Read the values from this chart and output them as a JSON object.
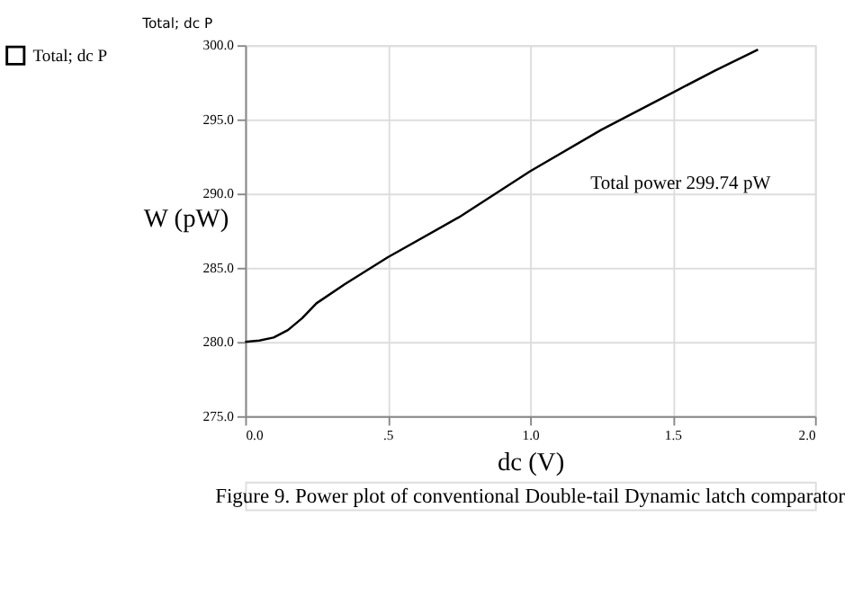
{
  "chart_data": {
    "type": "line",
    "title": "Total; dc P",
    "xlabel": "dc (V)",
    "ylabel": "W (pW)",
    "x": [
      0.0,
      0.05,
      0.1,
      0.15,
      0.2,
      0.25,
      0.35,
      0.5,
      0.75,
      1.0,
      1.25,
      1.5,
      1.65,
      1.8
    ],
    "series": [
      {
        "name": "Total; dc P",
        "color": "#000000",
        "values": [
          280.0,
          280.1,
          280.3,
          280.8,
          281.6,
          282.6,
          283.9,
          285.7,
          288.4,
          291.5,
          294.3,
          296.8,
          298.3,
          299.7
        ]
      }
    ],
    "xlim": [
      0.0,
      2.0
    ],
    "xticks": [
      {
        "value": 0.0,
        "label": "0.0"
      },
      {
        "value": 0.5,
        "label": ".5"
      },
      {
        "value": 1.0,
        "label": "1.0"
      },
      {
        "value": 1.5,
        "label": "1.5"
      },
      {
        "value": 2.0,
        "label": "2.0"
      }
    ],
    "ylim": [
      275.0,
      300.0
    ],
    "yticks": [
      {
        "value": 275,
        "label": "275.0"
      },
      {
        "value": 280,
        "label": "280.0"
      },
      {
        "value": 285,
        "label": "285.0"
      },
      {
        "value": 290,
        "label": "290.0"
      },
      {
        "value": 295,
        "label": "295.0"
      },
      {
        "value": 300,
        "label": "300.0"
      }
    ],
    "grid": true,
    "legend": "left",
    "marker": "none",
    "line_style": "solid",
    "annotations": [
      "Total power 299.74 pW",
      "Figure 9. Power plot of conventional Double-tail Dynamic latch comparator"
    ]
  }
}
